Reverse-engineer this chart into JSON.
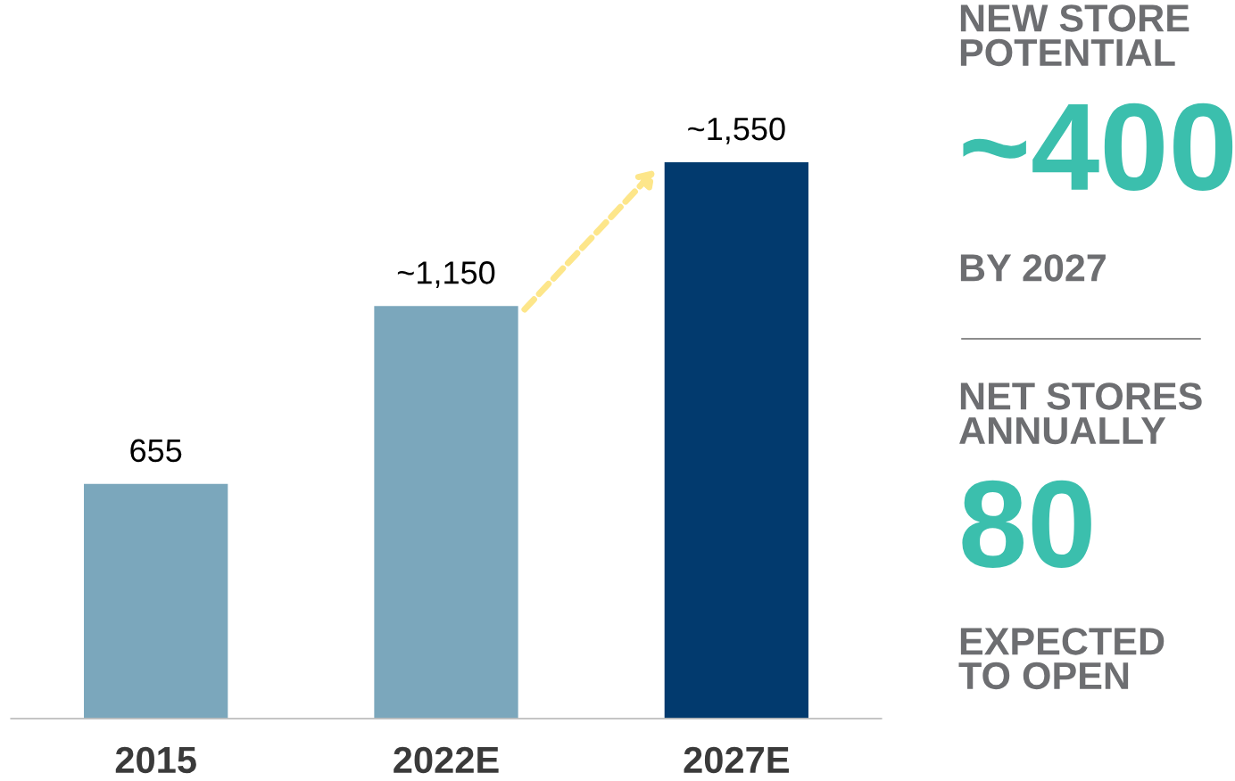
{
  "chart_data": {
    "type": "bar",
    "categories": [
      "2015",
      "2022E",
      "2027E"
    ],
    "values": [
      655,
      1150,
      1550
    ],
    "colors": [
      "#7ba7bc",
      "#7ba7bc",
      "#023a6e"
    ],
    "value_labels": [
      "655",
      "~1,150",
      "~1,550"
    ],
    "grid": false,
    "legend": false,
    "annotations": [
      "NEW STORE\nPOTENTIAL",
      "~400",
      "BY 2027",
      "NET STORES\nANNUALLY",
      "80",
      "EXPECTED\nTO OPEN"
    ]
  }
}
